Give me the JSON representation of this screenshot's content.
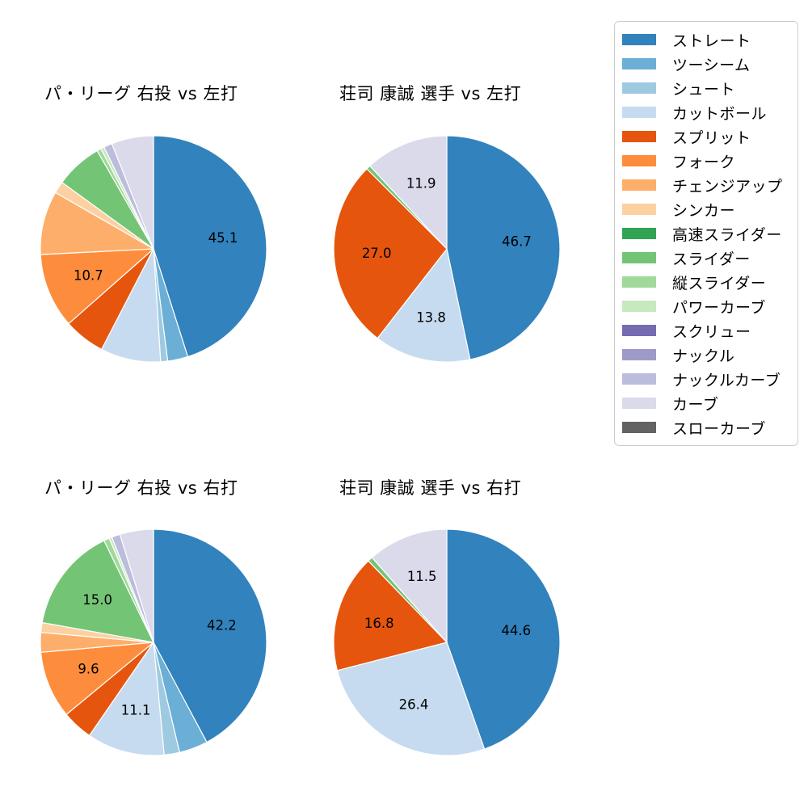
{
  "palette": {
    "ストレート": "#3182bd",
    "ツーシーム": "#6baed6",
    "シュート": "#9ecae1",
    "カットボール": "#c6dbef",
    "スプリット": "#e6550d",
    "フォーク": "#fd8d3c",
    "チェンジアップ": "#fdae6b",
    "シンカー": "#fdd0a2",
    "高速スライダー": "#31a354",
    "スライダー": "#74c476",
    "縦スライダー": "#a1d99b",
    "パワーカーブ": "#c7e9c0",
    "スクリュー": "#756bb1",
    "ナックル": "#9e9ac8",
    "ナックルカーブ": "#bcbddc",
    "カーブ": "#dadaeb",
    "スローカーブ": "#636363"
  },
  "legend": {
    "items": [
      {
        "label": "ストレート",
        "color": "#3182bd"
      },
      {
        "label": "ツーシーム",
        "color": "#6baed6"
      },
      {
        "label": "シュート",
        "color": "#9ecae1"
      },
      {
        "label": "カットボール",
        "color": "#c6dbef"
      },
      {
        "label": "スプリット",
        "color": "#e6550d"
      },
      {
        "label": "フォーク",
        "color": "#fd8d3c"
      },
      {
        "label": "チェンジアップ",
        "color": "#fdae6b"
      },
      {
        "label": "シンカー",
        "color": "#fdd0a2"
      },
      {
        "label": "高速スライダー",
        "color": "#31a354"
      },
      {
        "label": "スライダー",
        "color": "#74c476"
      },
      {
        "label": "縦スライダー",
        "color": "#a1d99b"
      },
      {
        "label": "パワーカーブ",
        "color": "#c7e9c0"
      },
      {
        "label": "スクリュー",
        "color": "#756bb1"
      },
      {
        "label": "ナックル",
        "color": "#9e9ac8"
      },
      {
        "label": "ナックルカーブ",
        "color": "#bcbddc"
      },
      {
        "label": "カーブ",
        "color": "#dadaeb"
      },
      {
        "label": "スローカーブ",
        "color": "#636363"
      }
    ]
  },
  "chart_data": [
    {
      "type": "pie",
      "title": "パ・リーグ 右投 vs 左打",
      "start_angle": "12-o-clock",
      "direction": "clockwise",
      "slices": [
        {
          "label": "ストレート",
          "value": 45.1,
          "labeled": true
        },
        {
          "label": "ツーシーム",
          "value": 2.9,
          "labeled": false
        },
        {
          "label": "シュート",
          "value": 1.0,
          "labeled": false
        },
        {
          "label": "カットボール",
          "value": 8.6,
          "labeled": false
        },
        {
          "label": "スプリット",
          "value": 5.9,
          "labeled": false
        },
        {
          "label": "フォーク",
          "value": 10.7,
          "labeled": true
        },
        {
          "label": "チェンジアップ",
          "value": 9.1,
          "labeled": false
        },
        {
          "label": "シンカー",
          "value": 1.7,
          "labeled": false
        },
        {
          "label": "スライダー",
          "value": 6.7,
          "labeled": false
        },
        {
          "label": "縦スライダー",
          "value": 0.6,
          "labeled": false
        },
        {
          "label": "パワーカーブ",
          "value": 0.5,
          "labeled": false
        },
        {
          "label": "ナックルカーブ",
          "value": 1.2,
          "labeled": false
        },
        {
          "label": "カーブ",
          "value": 6.0,
          "labeled": false
        }
      ]
    },
    {
      "type": "pie",
      "title": "荘司 康誠 選手 vs 左打",
      "start_angle": "12-o-clock",
      "direction": "clockwise",
      "slices": [
        {
          "label": "ストレート",
          "value": 46.7,
          "labeled": true
        },
        {
          "label": "カットボール",
          "value": 13.8,
          "labeled": true
        },
        {
          "label": "スプリット",
          "value": 27.0,
          "labeled": true
        },
        {
          "label": "スライダー",
          "value": 0.6,
          "labeled": false
        },
        {
          "label": "カーブ",
          "value": 11.9,
          "labeled": true
        }
      ]
    },
    {
      "type": "pie",
      "title": "パ・リーグ 右投 vs 右打",
      "start_angle": "12-o-clock",
      "direction": "clockwise",
      "slices": [
        {
          "label": "ストレート",
          "value": 42.2,
          "labeled": true
        },
        {
          "label": "ツーシーム",
          "value": 4.1,
          "labeled": false
        },
        {
          "label": "シュート",
          "value": 2.2,
          "labeled": false
        },
        {
          "label": "カットボール",
          "value": 11.1,
          "labeled": true
        },
        {
          "label": "スプリット",
          "value": 4.4,
          "labeled": false
        },
        {
          "label": "フォーク",
          "value": 9.6,
          "labeled": true
        },
        {
          "label": "チェンジアップ",
          "value": 2.8,
          "labeled": false
        },
        {
          "label": "シンカー",
          "value": 1.4,
          "labeled": false
        },
        {
          "label": "スライダー",
          "value": 15.0,
          "labeled": true
        },
        {
          "label": "縦スライダー",
          "value": 0.8,
          "labeled": false
        },
        {
          "label": "パワーカーブ",
          "value": 0.4,
          "labeled": false
        },
        {
          "label": "ナックルカーブ",
          "value": 1.2,
          "labeled": false
        },
        {
          "label": "カーブ",
          "value": 4.8,
          "labeled": false
        }
      ]
    },
    {
      "type": "pie",
      "title": "荘司 康誠 選手 vs 右打",
      "start_angle": "12-o-clock",
      "direction": "clockwise",
      "slices": [
        {
          "label": "ストレート",
          "value": 44.6,
          "labeled": true
        },
        {
          "label": "カットボール",
          "value": 26.4,
          "labeled": true
        },
        {
          "label": "スプリット",
          "value": 16.8,
          "labeled": true
        },
        {
          "label": "スライダー",
          "value": 0.7,
          "labeled": false
        },
        {
          "label": "カーブ",
          "value": 11.5,
          "labeled": true
        }
      ]
    }
  ]
}
